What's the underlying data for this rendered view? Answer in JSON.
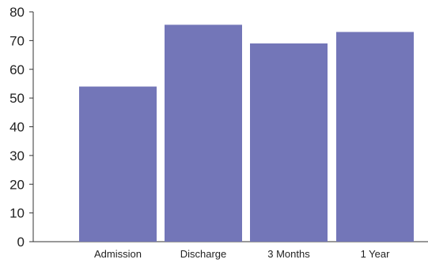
{
  "chart_data": {
    "type": "bar",
    "title": "",
    "xlabel": "",
    "ylabel": "",
    "categories": [
      "Admission",
      "Discharge",
      "3 Months",
      "1 Year"
    ],
    "values": [
      54,
      75.5,
      69,
      73
    ],
    "ylim": [
      0,
      80
    ],
    "yticks": [
      "0",
      "10",
      "20",
      "30",
      "40",
      "50",
      "60",
      "70",
      "80"
    ],
    "bar_color": "#7376b8",
    "grid": false,
    "legend": "none"
  }
}
